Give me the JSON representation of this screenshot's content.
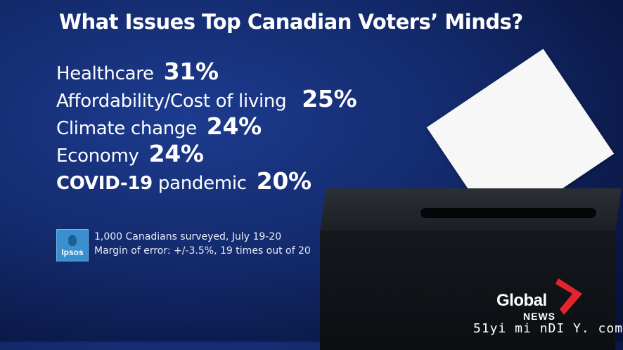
{
  "title": "What Issues Top Canadian Voters’ Minds?",
  "issues": [
    {
      "label": "Healthcare",
      "percent": "31%"
    },
    {
      "label": "Affordability/Cost of living",
      "percent": "25%"
    },
    {
      "label": "Climate change",
      "percent": "24%"
    },
    {
      "label": "Economy",
      "percent": "24%"
    },
    {
      "label_bold": "COVID-19",
      "label": "pandemic",
      "percent": "20%"
    }
  ],
  "source": {
    "logo_text": "Ipsos",
    "line1": "1,000 Canadians surveyed, July 19-20",
    "line2": "Margin of error: +/-3.5%, 19 times out of 20"
  },
  "brand": {
    "name": "Global",
    "sub": "NEWS",
    "accent": "#e5242b"
  },
  "watermark": "51yi mi nDI Y. com"
}
